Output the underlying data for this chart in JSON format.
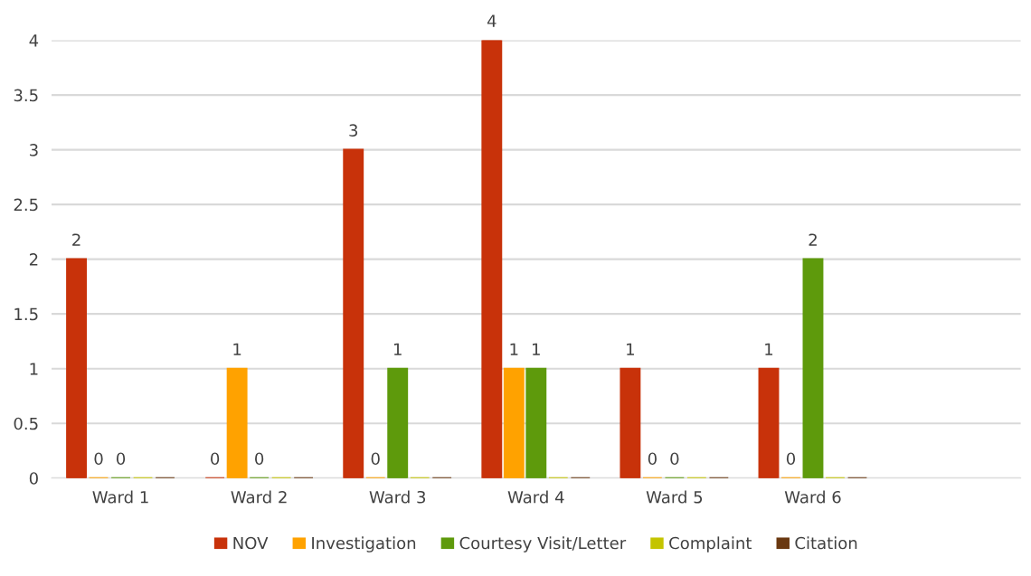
{
  "chart_data": {
    "type": "bar",
    "categories": [
      "Ward 1",
      "Ward 2",
      "Ward 3",
      "Ward 4",
      "Ward 5",
      "Ward 6"
    ],
    "series": [
      {
        "name": "NOV",
        "color": "#c8320a",
        "values": [
          2,
          0,
          3,
          4,
          1,
          1
        ],
        "value_labels": [
          "2",
          "0",
          "3",
          "4",
          "1",
          "1"
        ]
      },
      {
        "name": "Investigation",
        "color": "#ffa200",
        "values": [
          0,
          1,
          0,
          1,
          0,
          0
        ],
        "value_labels": [
          "0",
          "1",
          "0",
          "1",
          "0",
          "0"
        ]
      },
      {
        "name": "Courtesy Visit/Letter",
        "color": "#5e9a0c",
        "values": [
          0,
          0,
          1,
          1,
          0,
          2
        ],
        "value_labels": [
          "0",
          "0",
          "1",
          "1",
          "0",
          "2"
        ]
      },
      {
        "name": "Complaint",
        "color": "#c4c400",
        "values": [
          0,
          0,
          0,
          0,
          0,
          0
        ],
        "value_labels": [
          null,
          null,
          null,
          null,
          null,
          null
        ]
      },
      {
        "name": "Citation",
        "color": "#6a3810",
        "values": [
          0,
          0,
          0,
          0,
          0,
          0
        ],
        "value_labels": [
          null,
          null,
          null,
          null,
          null,
          null
        ]
      }
    ],
    "ylim": [
      0,
      4
    ],
    "yticks": [
      0,
      0.5,
      1,
      1.5,
      2,
      2.5,
      3,
      3.5,
      4
    ],
    "grid": "y",
    "legend": "bottom"
  }
}
